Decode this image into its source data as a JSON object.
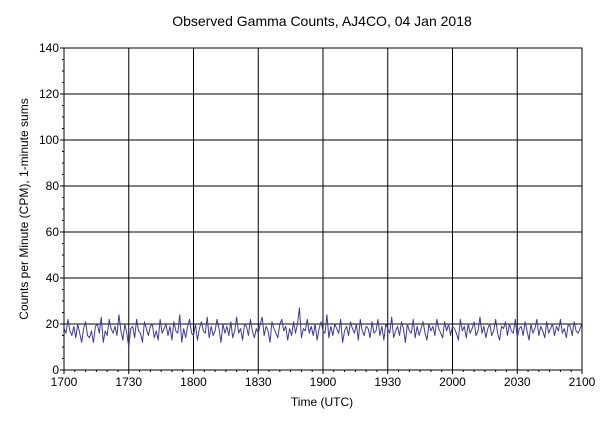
{
  "chart_data": {
    "type": "line",
    "title": "Observed Gamma Counts, AJ4CO, 04 Jan 2018",
    "xlabel": "Time (UTC)",
    "ylabel": "Counts per Minute (CPM), 1-minute sums",
    "x_ticks": [
      "1700",
      "1730",
      "1800",
      "1830",
      "1900",
      "1930",
      "2000",
      "2030",
      "2100"
    ],
    "y_ticks": [
      0,
      20,
      40,
      60,
      80,
      100,
      120,
      140
    ],
    "ylim": [
      0,
      140
    ],
    "grid": true,
    "colors": {
      "series": "#3b3b9b",
      "grid": "#000000"
    },
    "series": [
      {
        "values": [
          18,
          16,
          22,
          17,
          15,
          19,
          14,
          20,
          16,
          12,
          18,
          21,
          15,
          14,
          17,
          12,
          19,
          20,
          16,
          23,
          12,
          17,
          15,
          22,
          18,
          16,
          19,
          15,
          24,
          17,
          13,
          20,
          16,
          10,
          18,
          19,
          14,
          22,
          17,
          16,
          12,
          21,
          18,
          15,
          19,
          20,
          14,
          17,
          13,
          22,
          16,
          18,
          20,
          15,
          19,
          13,
          21,
          17,
          16,
          24,
          12,
          18,
          14,
          19,
          22,
          16,
          15,
          20,
          13,
          18,
          21,
          17,
          16,
          23,
          14,
          19,
          15,
          17,
          22,
          18,
          12,
          20,
          16,
          19,
          15,
          21,
          14,
          17,
          23,
          16,
          18,
          13,
          20,
          19,
          15,
          22,
          17,
          14,
          18,
          16,
          20,
          23,
          15,
          19,
          17,
          12,
          21,
          18,
          16,
          14,
          20,
          22,
          17,
          19,
          13,
          18,
          15,
          21,
          16,
          20,
          27,
          14,
          18,
          17,
          22,
          16,
          19,
          15,
          20,
          13,
          18,
          21,
          17,
          16,
          24,
          14,
          19,
          15,
          20,
          18,
          16,
          22,
          12,
          17,
          19,
          15,
          21,
          18,
          16,
          20,
          13,
          22,
          17,
          15,
          19,
          18,
          14,
          21,
          16,
          17,
          22,
          15,
          19,
          13,
          20,
          18,
          16,
          23,
          14,
          17,
          19,
          15,
          21,
          18,
          12,
          20,
          17,
          16,
          22,
          14,
          19,
          15,
          18,
          21,
          16,
          13,
          20,
          17,
          19,
          15,
          22,
          18,
          16,
          14,
          21,
          17,
          20,
          15,
          19,
          18,
          16,
          13,
          22,
          17,
          19,
          14,
          20,
          16,
          18,
          21,
          15,
          17,
          23,
          16,
          19,
          14,
          18,
          20,
          15,
          17,
          22,
          16,
          13,
          19,
          18,
          21,
          15,
          20,
          17,
          16,
          22,
          14,
          18,
          19,
          15,
          21,
          17,
          13,
          20,
          16,
          18,
          22,
          15,
          19,
          17,
          14,
          21,
          16,
          18,
          20,
          15,
          19,
          17,
          22,
          16,
          18,
          14,
          20,
          19,
          15,
          21,
          17,
          16,
          18,
          20
        ]
      }
    ]
  }
}
